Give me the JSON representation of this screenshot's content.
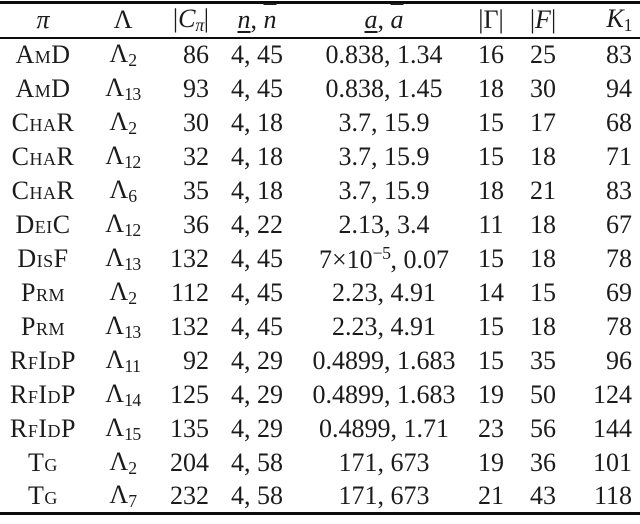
{
  "page": {
    "background": "#ffffff",
    "text_color": "#1b1b1b",
    "rule_color": "#0c0c0c"
  },
  "table": {
    "lambda_symbol": "Λ",
    "header": {
      "pi": "π",
      "lambda": "Λ",
      "c_open": "|",
      "c_letter": "C",
      "c_sub": "π",
      "c_close": "|",
      "n_under": "n",
      "n_sep": ", ",
      "n_over": "n",
      "a_under": "a",
      "a_sep": ", ",
      "a_over": "a",
      "gamma": "|Γ|",
      "f_open": "|",
      "f_letter": "F",
      "f_close": "|",
      "k_letter": "K",
      "k_sub": "1"
    },
    "rows": [
      {
        "pi": "AmD",
        "lambda_sub": "2",
        "c": "86",
        "n": "4, 45",
        "a": "0.838, 1.34",
        "gamma": "16",
        "f": "25",
        "k1": "83"
      },
      {
        "pi": "AmD",
        "lambda_sub": "13",
        "c": "93",
        "n": "4, 45",
        "a": "0.838, 1.45",
        "gamma": "18",
        "f": "30",
        "k1": "94"
      },
      {
        "pi": "ChaR",
        "lambda_sub": "2",
        "c": "30",
        "n": "4, 18",
        "a": "3.7, 15.9",
        "gamma": "15",
        "f": "17",
        "k1": "68"
      },
      {
        "pi": "ChaR",
        "lambda_sub": "12",
        "c": "32",
        "n": "4, 18",
        "a": "3.7, 15.9",
        "gamma": "15",
        "f": "18",
        "k1": "71"
      },
      {
        "pi": "ChaR",
        "lambda_sub": "6",
        "c": "35",
        "n": "4, 18",
        "a": "3.7, 15.9",
        "gamma": "18",
        "f": "21",
        "k1": "83"
      },
      {
        "pi": "DeiC",
        "lambda_sub": "12",
        "c": "36",
        "n": "4, 22",
        "a": "2.13, 3.4",
        "gamma": "11",
        "f": "18",
        "k1": "67"
      },
      {
        "pi": "DisF",
        "lambda_sub": "13",
        "c": "132",
        "n": "4, 45",
        "a_parts": [
          {
            "t": "7×10"
          },
          {
            "sup": "−5"
          },
          {
            "t": ", 0.07"
          }
        ],
        "gamma": "15",
        "f": "18",
        "k1": "78"
      },
      {
        "pi": "Prm",
        "lambda_sub": "2",
        "c": "112",
        "n": "4, 45",
        "a": "2.23, 4.91",
        "gamma": "14",
        "f": "15",
        "k1": "69"
      },
      {
        "pi": "Prm",
        "lambda_sub": "13",
        "c": "132",
        "n": "4, 45",
        "a": "2.23, 4.91",
        "gamma": "15",
        "f": "18",
        "k1": "78"
      },
      {
        "pi": "RfIdP",
        "lambda_sub": "11",
        "c": "92",
        "n": "4, 29",
        "a": "0.4899, 1.683",
        "gamma": "15",
        "f": "35",
        "k1": "96"
      },
      {
        "pi": "RfIdP",
        "lambda_sub": "14",
        "c": "125",
        "n": "4, 29",
        "a": "0.4899, 1.683",
        "gamma": "19",
        "f": "50",
        "k1": "124"
      },
      {
        "pi": "RfIdP",
        "lambda_sub": "15",
        "c": "135",
        "n": "4, 29",
        "a": "0.4899, 1.71",
        "gamma": "23",
        "f": "56",
        "k1": "144"
      },
      {
        "pi": "Tg",
        "lambda_sub": "2",
        "c": "204",
        "n": "4, 58",
        "a": "171, 673",
        "gamma": "19",
        "f": "36",
        "k1": "101"
      },
      {
        "pi": "Tg",
        "lambda_sub": "7",
        "c": "232",
        "n": "4, 58",
        "a": "171, 673",
        "gamma": "21",
        "f": "43",
        "k1": "118"
      }
    ]
  }
}
